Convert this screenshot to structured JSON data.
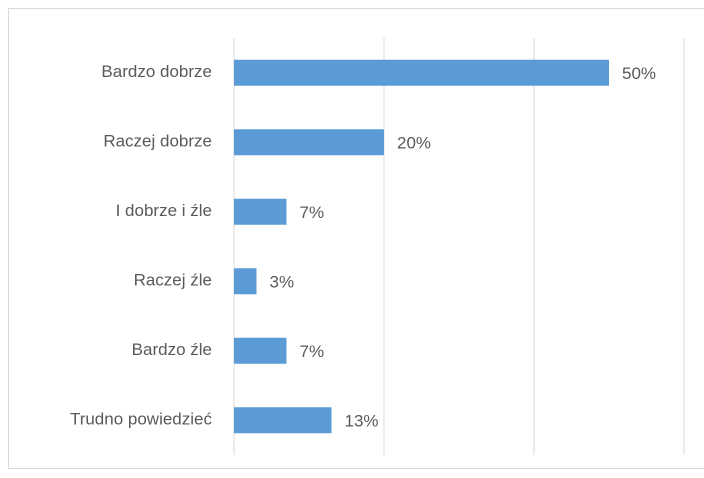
{
  "chart_data": {
    "type": "barh",
    "categories": [
      "Bardzo dobrze",
      "Raczej dobrze",
      "I dobrze i źle",
      "Raczej źle",
      "Bardzo źle",
      "Trudno powiedzieć"
    ],
    "values": [
      50,
      20,
      7,
      3,
      7,
      13
    ],
    "value_labels": [
      "50%",
      "20%",
      "7%",
      "3%",
      "7%",
      "13%"
    ],
    "color": "#5b9bd5",
    "xlim": [
      0,
      60
    ],
    "xticks": [
      0,
      20,
      40,
      60
    ],
    "grid": true
  }
}
